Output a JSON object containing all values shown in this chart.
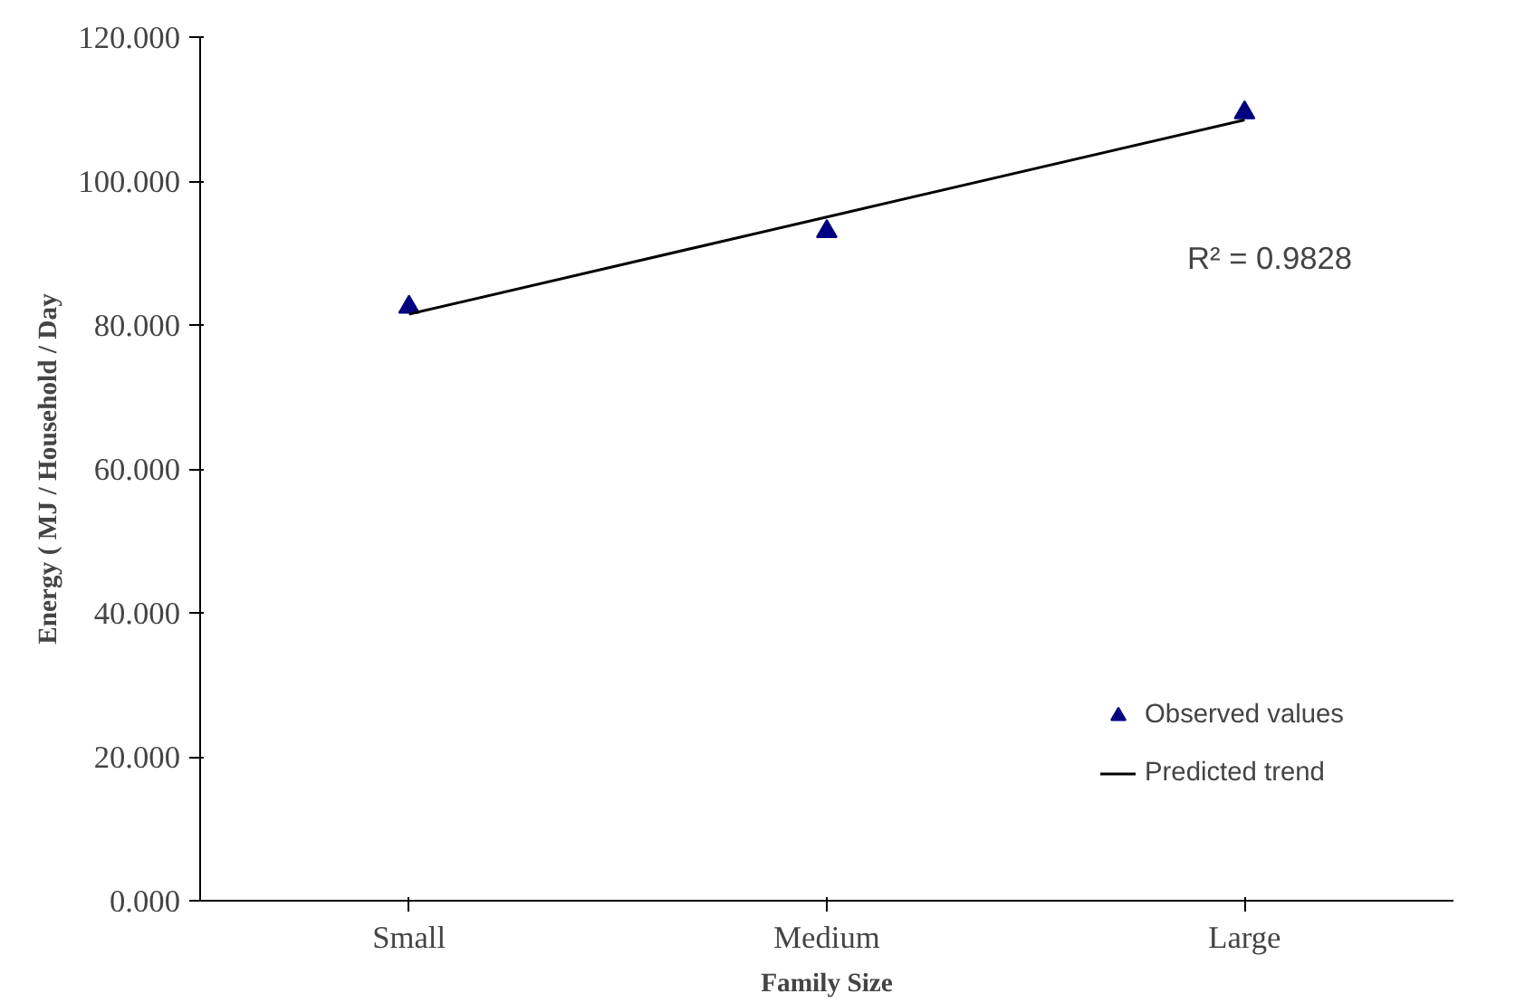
{
  "chart_data": {
    "type": "scatter",
    "xlabel": "Family Size",
    "ylabel": "Energy ( MJ / Household / Day",
    "categories": [
      "Small",
      "Medium",
      "Large"
    ],
    "series": [
      {
        "name": "Observed values",
        "color": "#000080",
        "marker": "triangle",
        "values": [
          82.5,
          93,
          109.5
        ]
      },
      {
        "name": "Predicted trend",
        "type": "line",
        "color": "#000000",
        "values": [
          81.5,
          95,
          108.5
        ]
      }
    ],
    "ylim": [
      0,
      120
    ],
    "yticks": [
      {
        "value": 0,
        "label": "0.000"
      },
      {
        "value": 20,
        "label": "20.000"
      },
      {
        "value": 40,
        "label": "40.000"
      },
      {
        "value": 60,
        "label": "60.000"
      },
      {
        "value": 80,
        "label": "80.000"
      },
      {
        "value": 100,
        "label": "100.000"
      },
      {
        "value": 120,
        "label": "120.000"
      }
    ],
    "annotations": [
      "R² = 0.9828"
    ],
    "grid": false,
    "legend": "bottom right"
  }
}
